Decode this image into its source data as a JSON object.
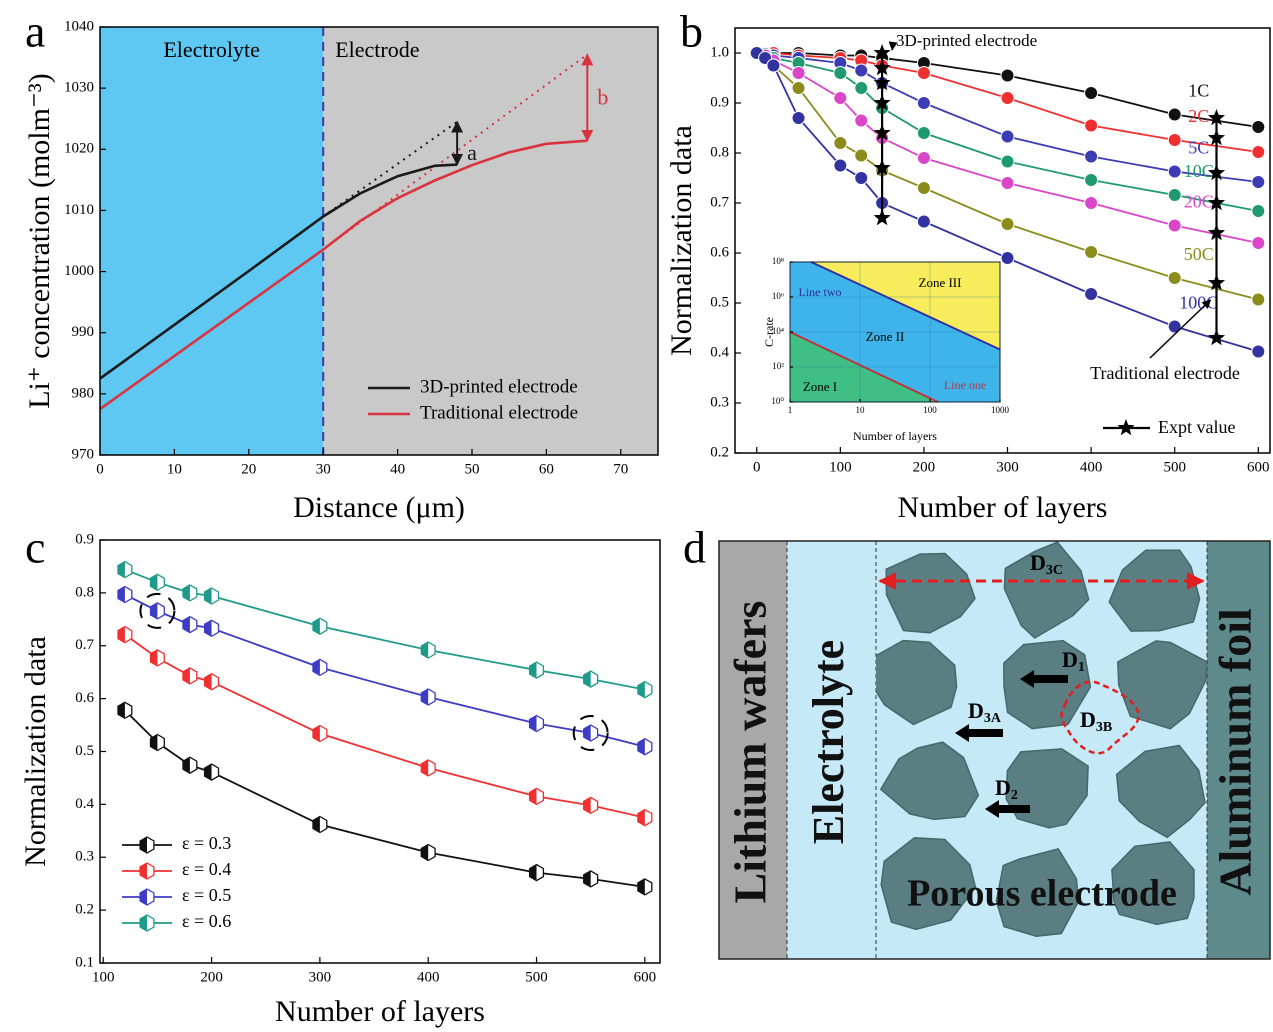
{
  "chart_data": [
    {
      "panel": "a",
      "type": "line",
      "x_label": "Distance (μm)",
      "y_label": "Li⁺ concentration (molm⁻³)",
      "xlim": [
        0,
        75
      ],
      "xticks": [
        0,
        10,
        20,
        30,
        40,
        50,
        60,
        70
      ],
      "ylim": [
        970,
        1040
      ],
      "yticks": [
        970,
        980,
        990,
        1000,
        1010,
        1020,
        1030,
        1040
      ],
      "regions": [
        {
          "label": "Electrolyte",
          "color": "#5ec8f2",
          "from": 0,
          "to": 30
        },
        {
          "label": "Electrode",
          "color": "#c9c9c9",
          "from": 30,
          "to": 75
        }
      ],
      "series": [
        {
          "name": "3D-printed electrode",
          "color": "#1a1a1a",
          "x": [
            0,
            10,
            20,
            30,
            35,
            40,
            45,
            48
          ],
          "values": [
            982.5,
            991.3,
            1000.1,
            1009,
            1012.8,
            1015.6,
            1017.3,
            1017.5
          ]
        },
        {
          "name": "Traditional electrode",
          "color": "#d9333f",
          "x": [
            0,
            10,
            20,
            30,
            35,
            40,
            45,
            50,
            55,
            60,
            65.5
          ],
          "values": [
            977.5,
            986.2,
            994.9,
            1003.6,
            1008.3,
            1012,
            1014.9,
            1017.4,
            1019.5,
            1020.9,
            1021.4
          ]
        }
      ],
      "extrapolations": [
        {
          "color": "#1a1a1a",
          "x": [
            30,
            48
          ],
          "values": [
            1009,
            1024.5
          ]
        },
        {
          "color": "#d9333f",
          "x": [
            30,
            65.5
          ],
          "values": [
            1003.6,
            1035.5
          ]
        }
      ],
      "arrows": [
        {
          "label": "a",
          "color": "#1a1a1a",
          "x": 48,
          "from": 1017.5,
          "to": 1024.5
        },
        {
          "label": "b",
          "color": "#d9333f",
          "x": 65.5,
          "from": 1021.4,
          "to": 1035.5
        }
      ],
      "legend": "lower right"
    },
    {
      "panel": "b",
      "type": "line",
      "x_label": "Number of layers",
      "y_label": "Normalization data",
      "xlim": [
        -26,
        614
      ],
      "xticks": [
        0,
        100,
        200,
        300,
        400,
        500,
        600
      ],
      "ylim": [
        0.2,
        1.05
      ],
      "yticks": [
        0.2,
        0.3,
        0.4,
        0.5,
        0.6,
        0.7,
        0.8,
        0.9,
        {
          "value": 1,
          "label": "1.0"
        }
      ],
      "x": [
        0,
        10,
        20,
        50,
        100,
        125,
        150,
        200,
        300,
        400,
        500,
        600
      ],
      "series": [
        {
          "name": "1C",
          "color": "#111111",
          "values": [
            1,
            1,
            1,
            1,
            0.995,
            0.995,
            0.99,
            0.98,
            0.955,
            0.92,
            0.877,
            0.852
          ]
        },
        {
          "name": "2C",
          "color": "#f03030",
          "values": [
            1,
            1,
            1,
            0.995,
            0.99,
            0.985,
            0.975,
            0.96,
            0.91,
            0.855,
            0.826,
            0.802
          ]
        },
        {
          "name": "5C",
          "color": "#3c3cb4",
          "values": [
            1,
            1,
            0.995,
            0.99,
            0.98,
            0.965,
            0.94,
            0.9,
            0.833,
            0.793,
            0.763,
            0.742
          ]
        },
        {
          "name": "10C",
          "color": "#1f9a6e",
          "values": [
            1,
            0.998,
            0.99,
            0.98,
            0.96,
            0.93,
            0.89,
            0.84,
            0.783,
            0.746,
            0.716,
            0.684
          ]
        },
        {
          "name": "20C",
          "color": "#d946c8",
          "values": [
            1,
            0.995,
            0.985,
            0.96,
            0.91,
            0.865,
            0.83,
            0.79,
            0.74,
            0.7,
            0.655,
            0.62
          ]
        },
        {
          "name": "50C",
          "color": "#8c8c1c",
          "values": [
            1,
            0.99,
            0.975,
            0.93,
            0.82,
            0.795,
            0.765,
            0.73,
            0.658,
            0.602,
            0.55,
            0.507
          ]
        },
        {
          "name": "100C",
          "color": "#3232a0",
          "values": [
            1,
            0.99,
            0.975,
            0.87,
            0.775,
            0.75,
            0.7,
            0.663,
            0.59,
            0.518,
            0.453,
            0.403
          ]
        }
      ],
      "experiment": {
        "name": "Expt value",
        "color": "#000000",
        "groups": [
          {
            "x": 150,
            "values": [
              1.0,
              0.97,
              0.94,
              0.9,
              0.84,
              0.77,
              0.67
            ]
          },
          {
            "x": 550,
            "values": [
              0.87,
              0.83,
              0.76,
              0.7,
              0.64,
              0.54,
              0.43
            ]
          }
        ]
      },
      "annotations": [
        {
          "text": "3D-printed electrode"
        },
        {
          "text": "Traditional electrode"
        }
      ],
      "legend": "lower right",
      "inset": {
        "type": "line",
        "x_label": "Number of layers",
        "y_label": "C-rate",
        "log_x": true,
        "log_y": true,
        "grid": true,
        "xlim": [
          1,
          1000
        ],
        "xticks": [
          1,
          10,
          100,
          1000
        ],
        "ylim": [
          1,
          100000000
        ],
        "yticks": [
          {
            "value": 1,
            "label": "10⁰"
          },
          {
            "value": 100,
            "label": "10²"
          },
          {
            "value": 10000,
            "label": "10⁴"
          },
          {
            "value": 1000000,
            "label": "10⁶"
          },
          {
            "value": 100000000,
            "label": "10⁸"
          }
        ],
        "zones": [
          {
            "label": "Zone I",
            "color": "#3fbf83"
          },
          {
            "label": "Zone II",
            "color": "#3fb4ea"
          },
          {
            "label": "Zone III",
            "color": "#f6ec5c"
          }
        ],
        "lines": [
          {
            "name": "Line one",
            "color": "#c0333b",
            "x": [
              1,
              130
            ],
            "values": [
              10000,
              1
            ]
          },
          {
            "name": "Line two",
            "color": "#3030a0",
            "x": [
              2,
              1000
            ],
            "values": [
              100000000,
              1000
            ]
          }
        ]
      }
    },
    {
      "panel": "c",
      "type": "line",
      "x_label": "Number of layers",
      "y_label": "Normalization data",
      "xlim": [
        97,
        614
      ],
      "xticks": [
        100,
        200,
        300,
        400,
        500,
        600
      ],
      "ylim": [
        0.1,
        0.9
      ],
      "yticks": [
        0.1,
        0.2,
        0.3,
        0.4,
        0.5,
        0.6,
        0.7,
        0.8,
        0.9
      ],
      "x": [
        120,
        150,
        180,
        200,
        300,
        400,
        500,
        550,
        600
      ],
      "series": [
        {
          "name": "ε = 0.3",
          "color": "#111111",
          "values": [
            0.578,
            0.517,
            0.474,
            0.461,
            0.362,
            0.309,
            0.271,
            0.259,
            0.244
          ]
        },
        {
          "name": "ε = 0.4",
          "color": "#f03030",
          "values": [
            0.721,
            0.677,
            0.643,
            0.632,
            0.534,
            0.469,
            0.415,
            0.398,
            0.375
          ]
        },
        {
          "name": "ε = 0.5",
          "color": "#3c3cc4",
          "values": [
            0.797,
            0.766,
            0.74,
            0.733,
            0.659,
            0.603,
            0.553,
            0.535,
            0.509
          ]
        },
        {
          "name": "ε = 0.6",
          "color": "#1f9a8a",
          "values": [
            0.844,
            0.82,
            0.8,
            0.794,
            0.737,
            0.692,
            0.654,
            0.637,
            0.617
          ]
        }
      ],
      "legend": "lower left"
    }
  ],
  "diagram": {
    "panel": "d",
    "layers": [
      {
        "label": "Lithium wafers"
      },
      {
        "label": "Electrolyte"
      },
      {
        "label": "Porous electrode"
      },
      {
        "label": "Aluminum foil"
      }
    ],
    "diffusion": [
      {
        "main": "D",
        "sub": "3C"
      },
      {
        "main": "D",
        "sub": "1"
      },
      {
        "main": "D",
        "sub": "3A"
      },
      {
        "main": "D",
        "sub": "3B"
      },
      {
        "main": "D",
        "sub": "2"
      }
    ]
  }
}
